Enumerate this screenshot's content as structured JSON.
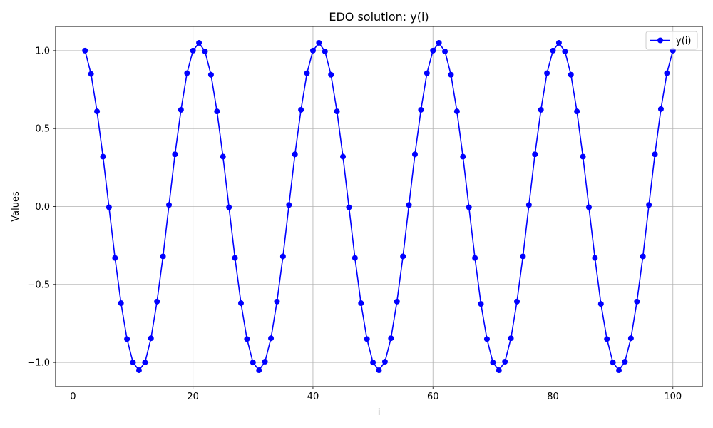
{
  "chart_data": {
    "type": "line",
    "title": "EDO solution: y(i)",
    "xlabel": "i",
    "ylabel": "Values",
    "xlim": [
      -2.9,
      104.9
    ],
    "ylim": [
      -1.155,
      1.155
    ],
    "x_ticks": [
      0,
      20,
      40,
      60,
      80,
      100
    ],
    "x_tick_labels": [
      "0",
      "20",
      "40",
      "60",
      "80",
      "100"
    ],
    "y_ticks": [
      -1.0,
      -0.5,
      0.0,
      0.5,
      1.0
    ],
    "y_tick_labels": [
      "−1.0",
      "−0.5",
      "0.0",
      "0.5",
      "1.0"
    ],
    "grid": true,
    "legend_position": "top-right",
    "series": [
      {
        "name": "y(i)",
        "color": "#0000ff",
        "marker": "circle",
        "x": [
          2,
          3,
          4,
          5,
          6,
          7,
          8,
          9,
          10,
          11,
          12,
          13,
          14,
          15,
          16,
          17,
          18,
          19,
          20,
          21,
          22,
          23,
          24,
          25,
          26,
          27,
          28,
          29,
          30,
          31,
          32,
          33,
          34,
          35,
          36,
          37,
          38,
          39,
          40,
          41,
          42,
          43,
          44,
          45,
          46,
          47,
          48,
          49,
          50,
          51,
          52,
          53,
          54,
          55,
          56,
          57,
          58,
          59,
          60,
          61,
          62,
          63,
          64,
          65,
          66,
          67,
          68,
          69,
          70,
          71,
          72,
          73,
          74,
          75,
          76,
          77,
          78,
          79,
          80,
          81,
          82,
          83,
          84,
          85,
          86,
          87,
          88,
          89,
          90,
          91,
          92,
          93,
          94,
          95,
          96,
          97,
          98,
          99,
          100
        ],
        "values": [
          1.0,
          0.85,
          0.61,
          0.32,
          -0.005,
          -0.33,
          -0.62,
          -0.85,
          -1.0,
          -1.05,
          -1.0,
          -0.845,
          -0.61,
          -0.32,
          0.01,
          0.335,
          0.62,
          0.855,
          1.0,
          1.05,
          0.995,
          0.845,
          0.61,
          0.32,
          -0.005,
          -0.33,
          -0.62,
          -0.85,
          -1.0,
          -1.05,
          -0.995,
          -0.845,
          -0.61,
          -0.32,
          0.01,
          0.335,
          0.62,
          0.855,
          1.0,
          1.05,
          0.995,
          0.845,
          0.61,
          0.32,
          -0.005,
          -0.33,
          -0.62,
          -0.85,
          -1.0,
          -1.05,
          -0.995,
          -0.845,
          -0.61,
          -0.32,
          0.01,
          0.335,
          0.62,
          0.855,
          1.0,
          1.05,
          0.995,
          0.845,
          0.61,
          0.32,
          -0.005,
          -0.33,
          -0.625,
          -0.85,
          -1.0,
          -1.05,
          -0.995,
          -0.845,
          -0.61,
          -0.32,
          0.01,
          0.335,
          0.62,
          0.855,
          1.0,
          1.05,
          0.995,
          0.845,
          0.61,
          0.32,
          -0.005,
          -0.33,
          -0.625,
          -0.85,
          -1.0,
          -1.05,
          -0.995,
          -0.845,
          -0.61,
          -0.32,
          0.01,
          0.335,
          0.625,
          0.855,
          1.0
        ]
      }
    ]
  }
}
